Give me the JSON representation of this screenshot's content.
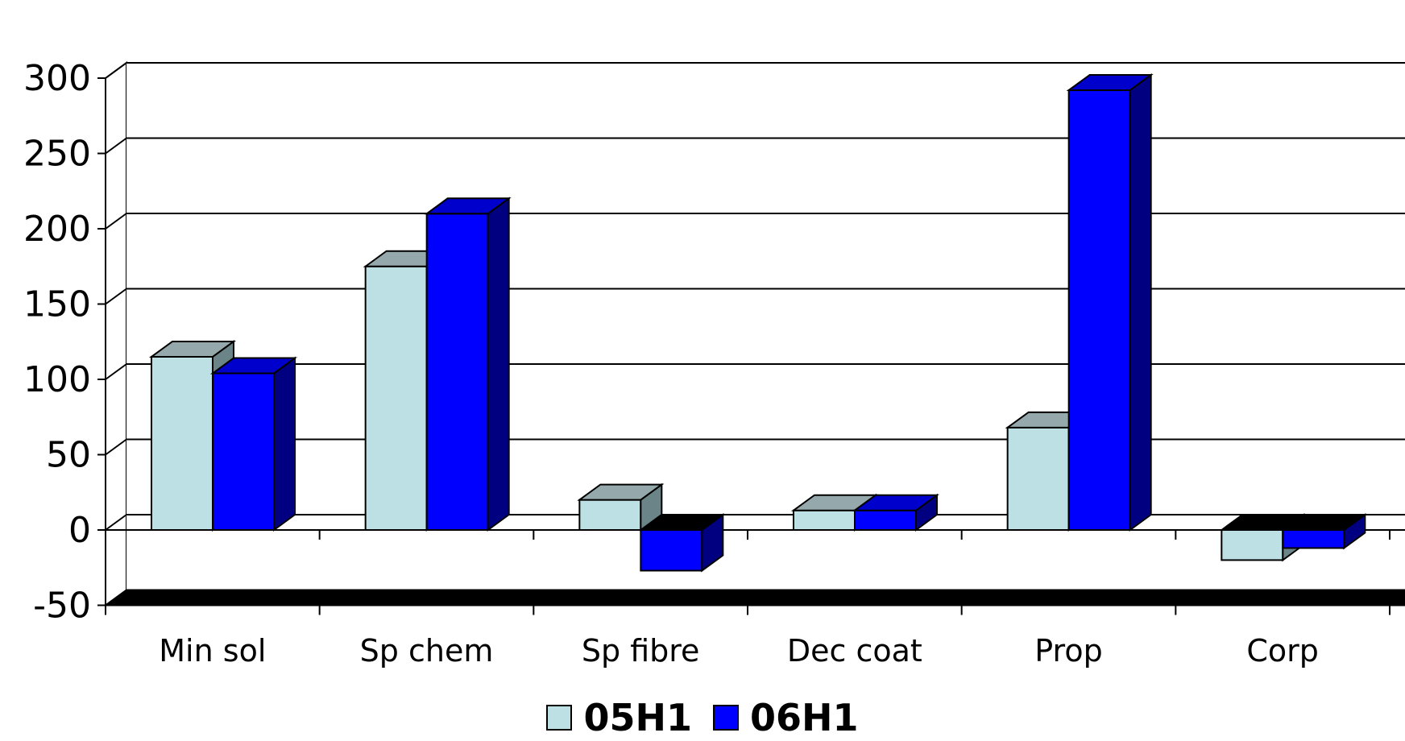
{
  "chart_data": {
    "type": "bar",
    "style": "3d-clustered-column",
    "categories": [
      "Min sol",
      "Sp chem",
      "Sp fibre",
      "Dec coat",
      "Prop",
      "Corp"
    ],
    "series": [
      {
        "name": "05H1",
        "values": [
          115,
          175,
          20,
          13,
          68,
          -20
        ],
        "color": "#BCE0E4",
        "side_color": "#6B8488",
        "top_color": "#95A9AC"
      },
      {
        "name": "06H1",
        "values": [
          104,
          210,
          -27,
          13,
          292,
          -12
        ],
        "color": "#0000FF",
        "side_color": "#000080",
        "top_color": "#0000CC"
      }
    ],
    "ylim": [
      -50,
      300
    ],
    "yticks": [
      -50,
      0,
      50,
      100,
      150,
      200,
      250,
      300
    ],
    "ytick_labels": [
      "-50",
      "0",
      "50",
      "100",
      "150",
      "200",
      "250",
      "300"
    ],
    "grid": true,
    "legend_position": "bottom",
    "title": "",
    "xlabel": "",
    "ylabel": ""
  }
}
